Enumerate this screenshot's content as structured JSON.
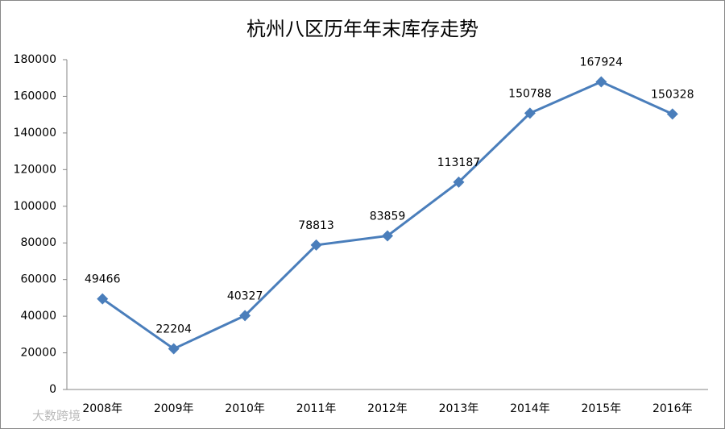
{
  "chart_data": {
    "type": "line",
    "title": "杭州八区历年年末库存走势",
    "categories": [
      "2008年",
      "2009年",
      "2010年",
      "2011年",
      "2012年",
      "2013年",
      "2014年",
      "2015年",
      "2016年"
    ],
    "values": [
      49466,
      22204,
      40327,
      78813,
      83859,
      113187,
      150788,
      167924,
      150328
    ],
    "color": "#4a7ebb",
    "ylim": [
      0,
      180000
    ],
    "yticks": [
      0,
      20000,
      40000,
      60000,
      80000,
      100000,
      120000,
      140000,
      160000,
      180000
    ],
    "grid": false,
    "watermark": "大数跨境"
  }
}
